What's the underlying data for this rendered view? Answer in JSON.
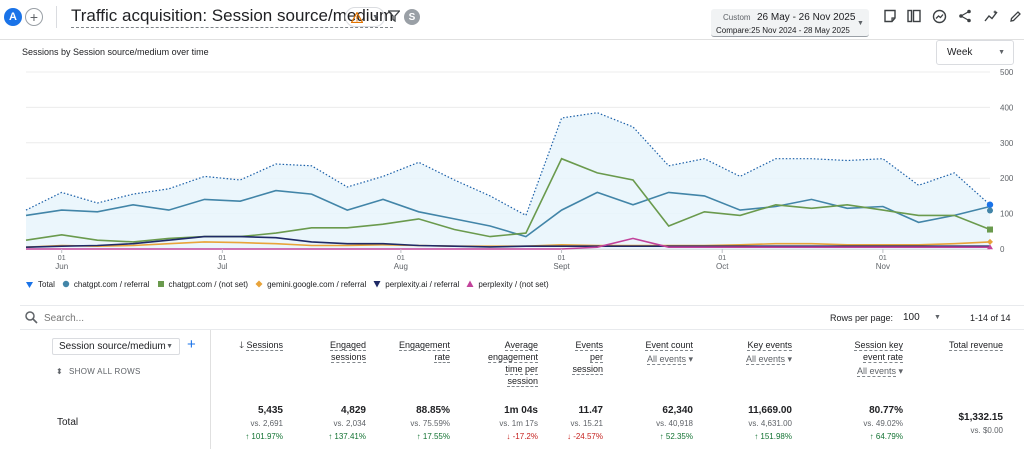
{
  "header": {
    "avatar_letter": "A",
    "title": "Traffic acquisition: Session source/medium",
    "user_initial": "S",
    "date_label": "Custom",
    "date_range": "26 May - 26 Nov 2025",
    "compare_range": "Compare:25 Nov 2024 - 28 May 2025"
  },
  "chart_card": {
    "title": "Sessions by Session source/medium over time",
    "granularity": "Week"
  },
  "chart_data": {
    "type": "line",
    "ylim": [
      0,
      500
    ],
    "y_ticks": [
      "500",
      "400",
      "300",
      "200",
      "100",
      "0"
    ],
    "x_tick_labels": [
      {
        "day": "01",
        "month": "Jun",
        "week": 1
      },
      {
        "day": "01",
        "month": "Jul",
        "week": 5.5
      },
      {
        "day": "01",
        "month": "Aug",
        "week": 10.5
      },
      {
        "day": "01",
        "month": "Sept",
        "week": 15
      },
      {
        "day": "01",
        "month": "Oct",
        "week": 19.5
      },
      {
        "day": "01",
        "month": "Nov",
        "week": 24
      }
    ],
    "weeks": 27,
    "series": [
      {
        "name": "Total",
        "color": "#1a73e8",
        "style": "dotted-area",
        "values": [
          110,
          160,
          130,
          155,
          170,
          205,
          195,
          240,
          235,
          175,
          205,
          245,
          195,
          150,
          95,
          370,
          385,
          345,
          235,
          255,
          205,
          255,
          255,
          250,
          255,
          180,
          215,
          125
        ]
      },
      {
        "name": "chatgpt.com / referral",
        "color": "#4285a8",
        "values": [
          95,
          110,
          105,
          125,
          110,
          140,
          135,
          165,
          155,
          110,
          140,
          105,
          85,
          65,
          35,
          110,
          160,
          125,
          160,
          150,
          110,
          120,
          140,
          115,
          120,
          75,
          95,
          120
        ]
      },
      {
        "name": "chatgpt.com / (not set)",
        "color": "#6a9a4d",
        "values": [
          25,
          40,
          25,
          20,
          30,
          35,
          35,
          45,
          60,
          60,
          70,
          85,
          55,
          35,
          45,
          255,
          215,
          195,
          65,
          105,
          95,
          125,
          115,
          125,
          110,
          95,
          95,
          55
        ]
      },
      {
        "name": "gemini.google.com / referral",
        "color": "#e8a33a",
        "values": [
          5,
          10,
          8,
          10,
          15,
          20,
          18,
          15,
          10,
          10,
          12,
          10,
          8,
          8,
          8,
          12,
          10,
          10,
          10,
          10,
          12,
          15,
          15,
          12,
          12,
          12,
          15,
          20
        ]
      },
      {
        "name": "perplexity.ai / referral",
        "color": "#1f2a66",
        "values": [
          5,
          8,
          10,
          15,
          25,
          35,
          35,
          32,
          20,
          15,
          15,
          10,
          8,
          6,
          8,
          8,
          8,
          8,
          8,
          8,
          8,
          8,
          8,
          8,
          8,
          8,
          8,
          8
        ]
      },
      {
        "name": "perplexity / (not set)",
        "color": "#c2439b",
        "values": [
          0,
          0,
          0,
          0,
          0,
          0,
          0,
          0,
          0,
          0,
          0,
          0,
          0,
          0,
          0,
          0,
          5,
          30,
          5,
          5,
          5,
          5,
          5,
          5,
          5,
          5,
          5,
          5
        ]
      }
    ]
  },
  "legend": [
    {
      "label": "Total",
      "color": "#1a73e8",
      "shape": "pin"
    },
    {
      "label": "chatgpt.com / referral",
      "color": "#4285a8",
      "shape": "circle"
    },
    {
      "label": "chatgpt.com / (not set)",
      "color": "#6a9a4d",
      "shape": "square"
    },
    {
      "label": "gemini.google.com / referral",
      "color": "#e8a33a",
      "shape": "diamond"
    },
    {
      "label": "perplexity.ai / referral",
      "color": "#1f2a66",
      "shape": "triangle-down"
    },
    {
      "label": "perplexity / (not set)",
      "color": "#c2439b",
      "shape": "triangle-up"
    }
  ],
  "table": {
    "search_placeholder": "Search...",
    "rows_per_page_label": "Rows per page:",
    "rows_per_page": "100",
    "pagination": "1-14 of 14",
    "dimension": "Session source/medium",
    "show_all_rows": "SHOW ALL ROWS",
    "total_label": "Total",
    "columns": [
      {
        "l1": "Sessions",
        "l2": "",
        "l3": "",
        "l4": "",
        "sub": "",
        "sorted": true,
        "value": "5,435",
        "vs": "vs. 2,691",
        "change": "101.97%",
        "dir": "up"
      },
      {
        "l1": "Engaged",
        "l2": "sessions",
        "l3": "",
        "l4": "",
        "sub": "",
        "value": "4,829",
        "vs": "vs. 2,034",
        "change": "137.41%",
        "dir": "up"
      },
      {
        "l1": "Engagement",
        "l2": "rate",
        "l3": "",
        "l4": "",
        "sub": "",
        "value": "88.85%",
        "vs": "vs. 75.59%",
        "change": "17.55%",
        "dir": "up"
      },
      {
        "l1": "Average",
        "l2": "engagement",
        "l3": "time per",
        "l4": "session",
        "sub": "",
        "value": "1m 04s",
        "vs": "vs. 1m 17s",
        "change": "-17.2%",
        "dir": "down"
      },
      {
        "l1": "Events",
        "l2": "per",
        "l3": "session",
        "l4": "",
        "sub": "",
        "value": "11.47",
        "vs": "vs. 15.21",
        "change": "-24.57%",
        "dir": "down"
      },
      {
        "l1": "Event count",
        "l2": "",
        "l3": "",
        "l4": "",
        "sub": "All events",
        "value": "62,340",
        "vs": "vs. 40,918",
        "change": "52.35%",
        "dir": "up"
      },
      {
        "l1": "Key events",
        "l2": "",
        "l3": "",
        "l4": "",
        "sub": "All events",
        "value": "11,669.00",
        "vs": "vs. 4,631.00",
        "change": "151.98%",
        "dir": "up"
      },
      {
        "l1": "Session key",
        "l2": "event rate",
        "l3": "",
        "l4": "",
        "sub": "All events",
        "value": "80.77%",
        "vs": "vs. 49.02%",
        "change": "64.79%",
        "dir": "up"
      },
      {
        "l1": "Total revenue",
        "l2": "",
        "l3": "",
        "l4": "",
        "sub": "",
        "value": "$1,332.15",
        "vs": "vs. $0.00",
        "change": "",
        "dir": ""
      }
    ]
  }
}
